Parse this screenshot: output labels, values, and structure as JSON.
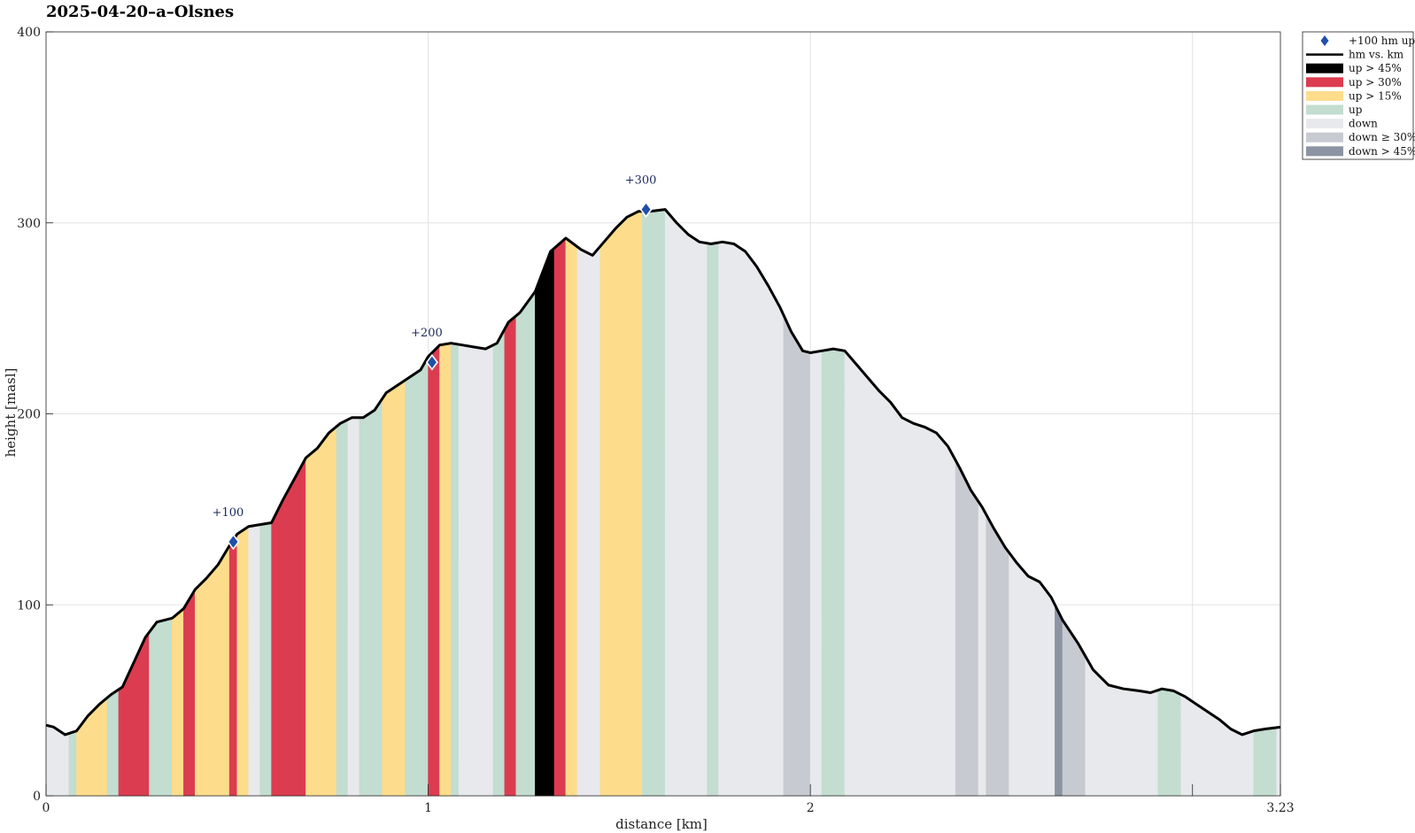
{
  "chart_data": {
    "type": "area",
    "title": "2025-04-20–a–Olsnes",
    "xlabel": "distance [km]",
    "ylabel": "height [masl]",
    "xlim": [
      0,
      3.23
    ],
    "ylim": [
      0,
      400
    ],
    "x_ticks": [
      0,
      1,
      2,
      3.23
    ],
    "x_tick_labels": [
      "0",
      "1",
      "2",
      "3.23"
    ],
    "y_ticks": [
      0,
      100,
      200,
      300,
      400
    ],
    "y_tick_labels": [
      "0",
      "100",
      "200",
      "300",
      "400"
    ],
    "grid": true,
    "legend_position": "top-right outside",
    "legend": [
      {
        "label": "+100 hm up",
        "kind": "marker",
        "color": "#1f4fa8"
      },
      {
        "label": "hm vs. km",
        "kind": "line",
        "color": "#000000"
      },
      {
        "label": "up > 45%",
        "kind": "patch",
        "color": "#000000"
      },
      {
        "label": "up > 30%",
        "kind": "patch",
        "color": "#dc3c50"
      },
      {
        "label": "up > 15%",
        "kind": "patch",
        "color": "#fddc8c"
      },
      {
        "label": "up",
        "kind": "patch",
        "color": "#c3ddd0"
      },
      {
        "label": "down",
        "kind": "patch",
        "color": "#e8e9ec"
      },
      {
        "label": "down ≥ 30%",
        "kind": "patch",
        "color": "#c8cad1"
      },
      {
        "label": "down > 45%",
        "kind": "patch",
        "color": "#8c94a3"
      }
    ],
    "profile": {
      "x": [
        0,
        0.02,
        0.05,
        0.08,
        0.11,
        0.14,
        0.17,
        0.2,
        0.23,
        0.26,
        0.29,
        0.33,
        0.36,
        0.39,
        0.42,
        0.45,
        0.48,
        0.5,
        0.53,
        0.56,
        0.59,
        0.62,
        0.65,
        0.68,
        0.71,
        0.74,
        0.77,
        0.8,
        0.83,
        0.86,
        0.89,
        0.92,
        0.95,
        0.98,
        1.0,
        1.03,
        1.06,
        1.09,
        1.12,
        1.15,
        1.18,
        1.21,
        1.24,
        1.28,
        1.32,
        1.36,
        1.4,
        1.43,
        1.46,
        1.49,
        1.52,
        1.55,
        1.58,
        1.62,
        1.65,
        1.68,
        1.71,
        1.74,
        1.77,
        1.8,
        1.83,
        1.86,
        1.89,
        1.92,
        1.95,
        1.98,
        2.0,
        2.03,
        2.06,
        2.09,
        2.12,
        2.15,
        2.18,
        2.21,
        2.24,
        2.27,
        2.3,
        2.33,
        2.36,
        2.39,
        2.42,
        2.45,
        2.48,
        2.51,
        2.54,
        2.57,
        2.6,
        2.63,
        2.66,
        2.7,
        2.74,
        2.78,
        2.82,
        2.86,
        2.89,
        2.92,
        2.95,
        2.98,
        3.01,
        3.04,
        3.07,
        3.1,
        3.13,
        3.16,
        3.19,
        3.23
      ],
      "y": [
        37,
        36,
        32,
        34,
        42,
        48,
        53,
        57,
        70,
        83,
        91,
        93,
        98,
        108,
        114,
        121,
        131,
        137,
        141,
        142,
        143,
        155,
        166,
        177,
        182,
        190,
        195,
        198,
        198,
        202,
        211,
        215,
        219,
        223,
        230,
        236,
        237,
        236,
        235,
        234,
        237,
        248,
        253,
        264,
        285,
        292,
        286,
        283,
        290,
        297,
        303,
        306,
        306,
        307,
        300,
        294,
        290,
        289,
        290,
        289,
        285,
        277,
        267,
        256,
        243,
        233,
        232,
        233,
        234,
        233,
        226,
        219,
        212,
        206,
        198,
        195,
        193,
        190,
        183,
        172,
        160,
        151,
        140,
        130,
        122,
        115,
        112,
        104,
        92,
        80,
        66,
        58,
        56,
        55,
        54,
        56,
        55,
        52,
        48,
        44,
        40,
        35,
        32,
        34,
        35,
        36
      ]
    },
    "segments": [
      {
        "from": 0,
        "to": 0.06,
        "category": "down"
      },
      {
        "from": 0.06,
        "to": 0.08,
        "category": "up"
      },
      {
        "from": 0.08,
        "to": 0.16,
        "category": "up > 15%"
      },
      {
        "from": 0.16,
        "to": 0.19,
        "category": "up"
      },
      {
        "from": 0.19,
        "to": 0.27,
        "category": "up > 30%"
      },
      {
        "from": 0.27,
        "to": 0.33,
        "category": "up"
      },
      {
        "from": 0.33,
        "to": 0.36,
        "category": "up > 15%"
      },
      {
        "from": 0.36,
        "to": 0.39,
        "category": "up > 30%"
      },
      {
        "from": 0.39,
        "to": 0.48,
        "category": "up > 15%"
      },
      {
        "from": 0.48,
        "to": 0.5,
        "category": "up > 30%"
      },
      {
        "from": 0.5,
        "to": 0.53,
        "category": "up > 15%"
      },
      {
        "from": 0.53,
        "to": 0.56,
        "category": "down"
      },
      {
        "from": 0.56,
        "to": 0.59,
        "category": "up"
      },
      {
        "from": 0.59,
        "to": 0.68,
        "category": "up > 30%"
      },
      {
        "from": 0.68,
        "to": 0.76,
        "category": "up > 15%"
      },
      {
        "from": 0.76,
        "to": 0.79,
        "category": "up"
      },
      {
        "from": 0.79,
        "to": 0.82,
        "category": "down"
      },
      {
        "from": 0.82,
        "to": 0.88,
        "category": "up"
      },
      {
        "from": 0.88,
        "to": 0.94,
        "category": "up > 15%"
      },
      {
        "from": 0.94,
        "to": 1.0,
        "category": "up"
      },
      {
        "from": 1.0,
        "to": 1.03,
        "category": "up > 30%"
      },
      {
        "from": 1.03,
        "to": 1.06,
        "category": "up > 15%"
      },
      {
        "from": 1.06,
        "to": 1.08,
        "category": "up"
      },
      {
        "from": 1.08,
        "to": 1.17,
        "category": "down"
      },
      {
        "from": 1.17,
        "to": 1.2,
        "category": "up"
      },
      {
        "from": 1.2,
        "to": 1.23,
        "category": "up > 30%"
      },
      {
        "from": 1.23,
        "to": 1.28,
        "category": "up"
      },
      {
        "from": 1.28,
        "to": 1.33,
        "category": "up > 45%"
      },
      {
        "from": 1.33,
        "to": 1.36,
        "category": "up > 30%"
      },
      {
        "from": 1.36,
        "to": 1.39,
        "category": "up > 15%"
      },
      {
        "from": 1.39,
        "to": 1.45,
        "category": "down"
      },
      {
        "from": 1.45,
        "to": 1.56,
        "category": "up > 15%"
      },
      {
        "from": 1.56,
        "to": 1.62,
        "category": "up"
      },
      {
        "from": 1.62,
        "to": 1.73,
        "category": "down"
      },
      {
        "from": 1.73,
        "to": 1.76,
        "category": "up"
      },
      {
        "from": 1.76,
        "to": 1.93,
        "category": "down"
      },
      {
        "from": 1.93,
        "to": 2.0,
        "category": "down ≥ 30%"
      },
      {
        "from": 2.0,
        "to": 2.03,
        "category": "down"
      },
      {
        "from": 2.03,
        "to": 2.09,
        "category": "up"
      },
      {
        "from": 2.09,
        "to": 2.38,
        "category": "down"
      },
      {
        "from": 2.38,
        "to": 2.44,
        "category": "down ≥ 30%"
      },
      {
        "from": 2.44,
        "to": 2.46,
        "category": "down"
      },
      {
        "from": 2.46,
        "to": 2.52,
        "category": "down ≥ 30%"
      },
      {
        "from": 2.52,
        "to": 2.64,
        "category": "down"
      },
      {
        "from": 2.64,
        "to": 2.66,
        "category": "down > 45%"
      },
      {
        "from": 2.66,
        "to": 2.72,
        "category": "down ≥ 30%"
      },
      {
        "from": 2.72,
        "to": 2.91,
        "category": "down"
      },
      {
        "from": 2.91,
        "to": 2.97,
        "category": "up"
      },
      {
        "from": 2.97,
        "to": 3.16,
        "category": "down"
      },
      {
        "from": 3.16,
        "to": 3.22,
        "category": "up"
      },
      {
        "from": 3.22,
        "to": 3.23,
        "category": "down"
      }
    ],
    "markers": [
      {
        "x": 0.49,
        "y": 133,
        "label": "+100"
      },
      {
        "x": 1.01,
        "y": 227,
        "label": "+200"
      },
      {
        "x": 1.57,
        "y": 307,
        "label": "+300"
      }
    ]
  }
}
